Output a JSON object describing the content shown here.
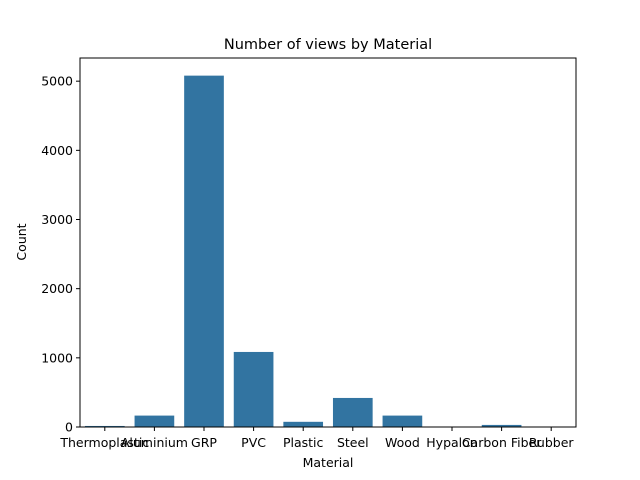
{
  "chart_data": {
    "type": "bar",
    "title": "Number of views by Material",
    "xlabel": "Material",
    "ylabel": "Count",
    "categories": [
      "Thermoplastic",
      "Aluminium",
      "GRP",
      "PVC",
      "Plastic",
      "Steel",
      "Wood",
      "Hypalon",
      "Carbon Fiber",
      "Rubber"
    ],
    "values": [
      15,
      165,
      5080,
      1085,
      75,
      420,
      165,
      3,
      30,
      3
    ],
    "ylim": [
      0,
      5335
    ],
    "yticks": [
      0,
      1000,
      2000,
      3000,
      4000,
      5000
    ],
    "grid": false,
    "bar_color": "#3274a1"
  }
}
